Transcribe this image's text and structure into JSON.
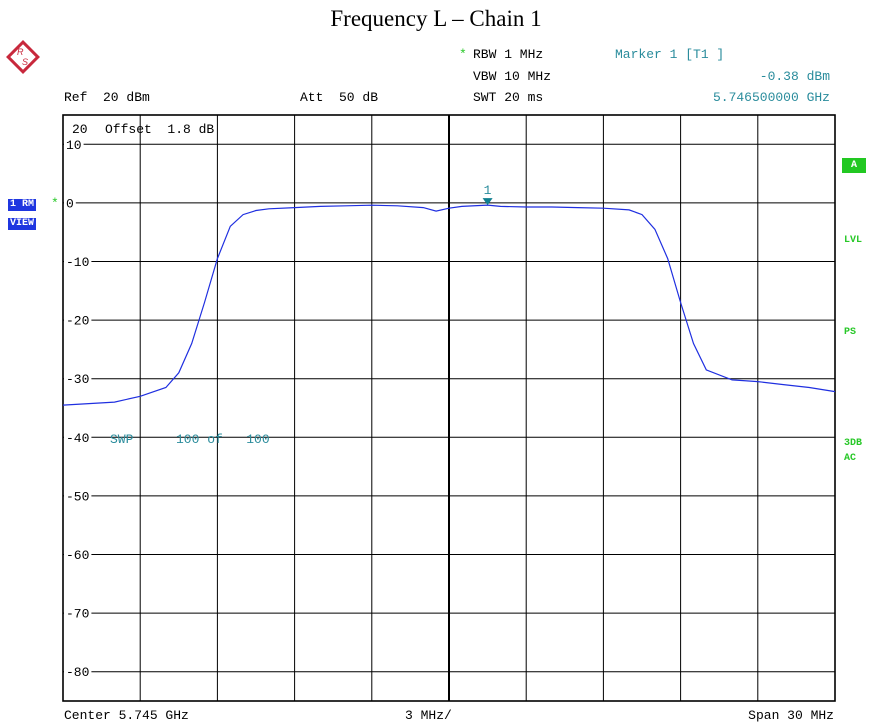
{
  "title": "Frequency L – Chain 1",
  "header": {
    "ref": "Ref  20 dBm",
    "att": "Att  50 dB",
    "rbw_star": "*",
    "rbw": "RBW 1 MHz",
    "vbw": "VBW 10 MHz",
    "swt": "SWT 20 ms",
    "marker_title": "Marker 1 [T1 ]",
    "marker_level": "-0.38 dBm",
    "marker_freq": "5.746500000 GHz"
  },
  "left_tags": {
    "trace_mode": "1 RM",
    "trace_star": "*",
    "trace_view": "VIEW"
  },
  "right_tags": {
    "a_box": "A",
    "lvl": "LVL",
    "ps": "PS",
    "db3": "3DB",
    "ac": "AC"
  },
  "overlay": {
    "offset_ref": "20",
    "offset": "Offset  1.8 dB",
    "swp": "SWP",
    "swp_count": "100 of   100",
    "marker_label": "1"
  },
  "footer": {
    "center": "Center 5.745 GHz",
    "div": "3 MHz/",
    "span": "Span 30 MHz"
  },
  "colors": {
    "trace": "#1f2fe0",
    "marker": "#0f7f8f",
    "accent_green": "#28c828",
    "grid": "#000000"
  },
  "icons": {
    "logo": "rohde-schwarz-logo"
  },
  "chart_data": {
    "type": "line",
    "x_unit": "GHz",
    "y_unit": "dBm",
    "x_range": [
      5.73,
      5.76
    ],
    "y_range": [
      -85,
      15
    ],
    "x_center": 5.745,
    "x_span": 0.03,
    "x_per_div": 0.003,
    "y_ticks": [
      -80,
      -70,
      -60,
      -50,
      -40,
      -30,
      -20,
      -10,
      0,
      10
    ],
    "y_tick_labels": [
      "-80",
      "-70",
      "-60",
      "-50",
      "-40",
      "-30",
      "-20",
      "-10",
      "0",
      "10"
    ],
    "grid": true,
    "series": [
      {
        "x": [
          5.73,
          5.732,
          5.733,
          5.734,
          5.7345,
          5.735,
          5.7355,
          5.736,
          5.7365,
          5.737,
          5.7375,
          5.738,
          5.739,
          5.74,
          5.741,
          5.742,
          5.743,
          5.744,
          5.7445,
          5.745,
          5.7455,
          5.7465,
          5.747,
          5.748,
          5.749,
          5.75,
          5.751,
          5.752,
          5.7525,
          5.753,
          5.7535,
          5.754,
          5.7545,
          5.755,
          5.756,
          5.757,
          5.758,
          5.759,
          5.76
        ],
        "y": [
          -34.5,
          -34.0,
          -33.0,
          -31.5,
          -29.0,
          -24.0,
          -17.0,
          -9.5,
          -4.0,
          -2.0,
          -1.3,
          -1.0,
          -0.8,
          -0.6,
          -0.5,
          -0.4,
          -0.5,
          -0.8,
          -1.4,
          -0.9,
          -0.6,
          -0.38,
          -0.6,
          -0.7,
          -0.7,
          -0.8,
          -0.9,
          -1.2,
          -2.0,
          -4.5,
          -9.5,
          -17.0,
          -24.0,
          -28.5,
          -30.2,
          -30.5,
          -31.0,
          -31.5,
          -32.2
        ]
      }
    ],
    "marker": {
      "label": "1",
      "x": 5.7465,
      "y": -0.38
    }
  }
}
